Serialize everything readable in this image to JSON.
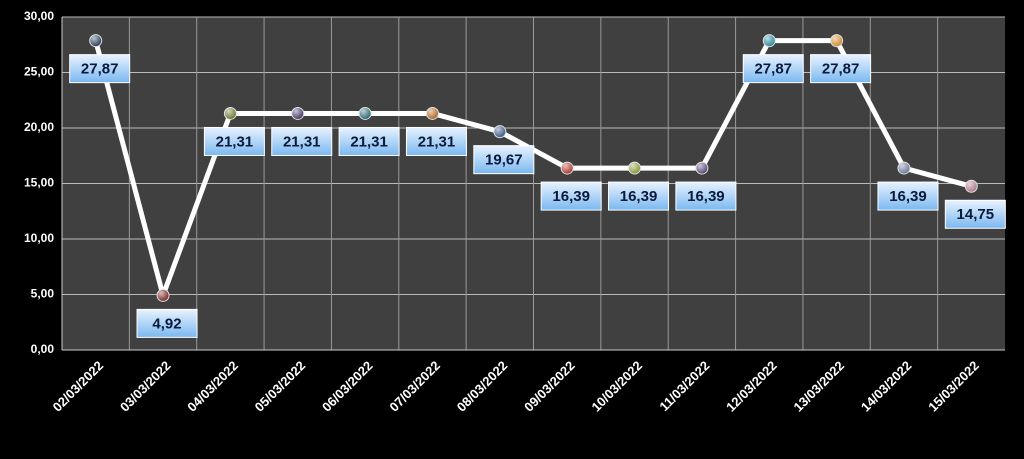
{
  "chart_data": {
    "type": "line",
    "categories": [
      "02/03/2022",
      "03/03/2022",
      "04/03/2022",
      "05/03/2022",
      "06/03/2022",
      "07/03/2022",
      "08/03/2022",
      "09/03/2022",
      "10/03/2022",
      "11/03/2022",
      "12/03/2022",
      "13/03/2022",
      "14/03/2022",
      "15/03/2022"
    ],
    "values": [
      27.87,
      4.92,
      21.31,
      21.31,
      21.31,
      21.31,
      19.67,
      16.39,
      16.39,
      16.39,
      27.87,
      27.87,
      16.39,
      14.75
    ],
    "value_labels": [
      "27,87",
      "4,92",
      "21,31",
      "21,31",
      "21,31",
      "21,31",
      "19,67",
      "16,39",
      "16,39",
      "16,39",
      "27,87",
      "27,87",
      "16,39",
      "14,75"
    ],
    "color": "#ffffff",
    "marker_colors": [
      "#2b3d5a",
      "#7a2a25",
      "#6a7a30",
      "#4a3a6a",
      "#2a6a78",
      "#b06a2a",
      "#3a5a8a",
      "#b03a30",
      "#8a9a3a",
      "#5a4a7a",
      "#2a8aa0",
      "#d08a30",
      "#6a7a9a",
      "#b07a8a"
    ],
    "ylim": [
      0,
      30
    ],
    "yticks": [
      {
        "value": 0,
        "label": "0,00"
      },
      {
        "value": 5,
        "label": "5,00"
      },
      {
        "value": 10,
        "label": "10,00"
      },
      {
        "value": 15,
        "label": "15,00"
      },
      {
        "value": 20,
        "label": "20,00"
      },
      {
        "value": 25,
        "label": "25,00"
      },
      {
        "value": 30,
        "label": "30,00"
      }
    ],
    "grid": true
  }
}
